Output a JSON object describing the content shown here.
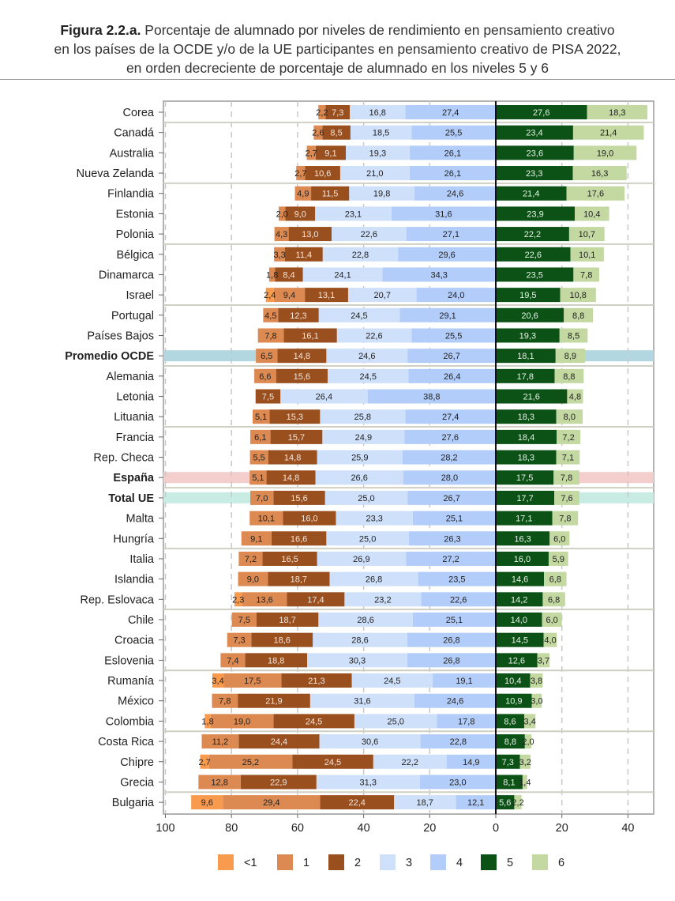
{
  "title": {
    "bold": "Figura 2.2.a.",
    "line1": " Porcentaje de alumnado por niveles de rendimiento en pensamiento creativo",
    "line2": "en los países de la OCDE y/o de la UE participantes en pensamiento creativo de PISA 2022,",
    "line3": "en orden decreciente de porcentaje de alumnado en los niveles 5 y 6"
  },
  "chart_data": {
    "type": "bar",
    "orientation": "horizontal-diverging-stacked",
    "xlim": [
      -100,
      47.5
    ],
    "x_ticks": [
      -100,
      -80,
      -60,
      -40,
      -20,
      0,
      20,
      40
    ],
    "x_tick_labels": [
      "100",
      "80",
      "60",
      "40",
      "20",
      "0",
      "20",
      "40"
    ],
    "grid": "dashed vertical",
    "legend_position": "bottom",
    "levels": [
      "<1",
      "1",
      "2",
      "3",
      "4",
      "5",
      "6"
    ],
    "level_colors": [
      "#f99b4f",
      "#dc8a52",
      "#9a4f1e",
      "#cfe0fb",
      "#b3cdfa",
      "#0c5216",
      "#c3d9a1"
    ],
    "highlight_colors": {
      "Promedio OCDE": "#b3d7e1",
      "España": "#f4cdcd",
      "Total UE": "#c9ece2"
    },
    "categories": [
      "Corea",
      "Canadá",
      "Australia",
      "Nueva Zelanda",
      "Finlandia",
      "Estonia",
      "Polonia",
      "Bélgica",
      "Dinamarca",
      "Israel",
      "Portugal",
      "Países Bajos",
      "Promedio OCDE",
      "Alemania",
      "Letonia",
      "Lituania",
      "Francia",
      "Rep. Checa",
      "España",
      "Total UE",
      "Malta",
      "Hungría",
      "Italia",
      "Islandia",
      "Rep. Eslovaca",
      "Chile",
      "Croacia",
      "Eslovenia",
      "Rumanía",
      "México",
      "Colombia",
      "Costa Rica",
      "Chipre",
      "Grecia",
      "Bulgaria"
    ],
    "bold_categories": [
      "Promedio OCDE",
      "España",
      "Total UE"
    ],
    "series": [
      {
        "name": "<1",
        "values": [
          null,
          null,
          null,
          null,
          null,
          null,
          null,
          null,
          null,
          2.4,
          null,
          null,
          null,
          null,
          null,
          null,
          null,
          null,
          null,
          null,
          null,
          null,
          null,
          null,
          2.3,
          null,
          null,
          null,
          3.4,
          null,
          1.8,
          null,
          2.7,
          null,
          9.6
        ]
      },
      {
        "name": "1",
        "values": [
          2.2,
          2.6,
          2.7,
          2.7,
          4.9,
          2.0,
          4.3,
          3.3,
          1.8,
          9.4,
          4.5,
          7.8,
          6.5,
          6.6,
          null,
          5.1,
          6.1,
          5.5,
          5.1,
          7.0,
          10.1,
          9.1,
          7.2,
          9.0,
          13.6,
          7.5,
          7.3,
          7.4,
          17.5,
          7.8,
          19.0,
          11.2,
          25.2,
          12.8,
          29.4
        ]
      },
      {
        "name": "2",
        "values": [
          7.3,
          8.5,
          9.1,
          10.6,
          11.5,
          9.0,
          13.0,
          11.4,
          8.4,
          13.1,
          12.3,
          16.1,
          14.8,
          15.6,
          7.5,
          15.3,
          15.7,
          14.8,
          14.8,
          15.6,
          16.0,
          16.6,
          16.5,
          18.7,
          17.4,
          18.7,
          18.6,
          18.8,
          21.3,
          21.9,
          24.5,
          24.4,
          24.5,
          22.9,
          22.4
        ]
      },
      {
        "name": "3",
        "values": [
          16.8,
          18.5,
          19.3,
          21.0,
          19.8,
          23.1,
          22.6,
          22.8,
          24.1,
          20.7,
          24.5,
          22.6,
          24.6,
          24.5,
          26.4,
          25.8,
          24.9,
          25.9,
          26.6,
          25.0,
          23.3,
          25.0,
          26.9,
          26.8,
          23.2,
          28.6,
          28.6,
          30.3,
          24.5,
          31.6,
          25.0,
          30.6,
          22.2,
          31.3,
          18.7
        ]
      },
      {
        "name": "4",
        "values": [
          27.4,
          25.5,
          26.1,
          26.1,
          24.6,
          31.6,
          27.1,
          29.6,
          34.3,
          24.0,
          29.1,
          25.5,
          26.7,
          26.4,
          38.8,
          27.4,
          27.6,
          28.2,
          28.0,
          26.7,
          25.1,
          26.3,
          27.2,
          23.5,
          22.6,
          25.1,
          26.8,
          26.8,
          19.1,
          24.6,
          17.8,
          22.8,
          14.9,
          23.0,
          12.1
        ]
      },
      {
        "name": "5",
        "values": [
          27.6,
          23.4,
          23.6,
          23.3,
          21.4,
          23.9,
          22.2,
          22.6,
          23.5,
          19.5,
          20.6,
          19.3,
          18.1,
          17.8,
          21.6,
          18.3,
          18.4,
          18.3,
          17.5,
          17.7,
          17.1,
          16.3,
          16.0,
          14.6,
          14.2,
          14.0,
          14.5,
          12.6,
          10.4,
          10.9,
          8.6,
          8.8,
          7.3,
          8.1,
          5.6
        ]
      },
      {
        "name": "6",
        "values": [
          18.3,
          21.4,
          19.0,
          16.3,
          17.6,
          10.4,
          10.7,
          10.1,
          7.8,
          10.8,
          8.8,
          8.5,
          8.9,
          8.8,
          4.8,
          8.0,
          7.2,
          7.1,
          7.8,
          7.6,
          7.8,
          6.0,
          5.9,
          6.8,
          6.8,
          6.0,
          4.0,
          3.7,
          3.8,
          3.0,
          3.4,
          2.0,
          3.2,
          1.4,
          2.2
        ]
      }
    ]
  }
}
